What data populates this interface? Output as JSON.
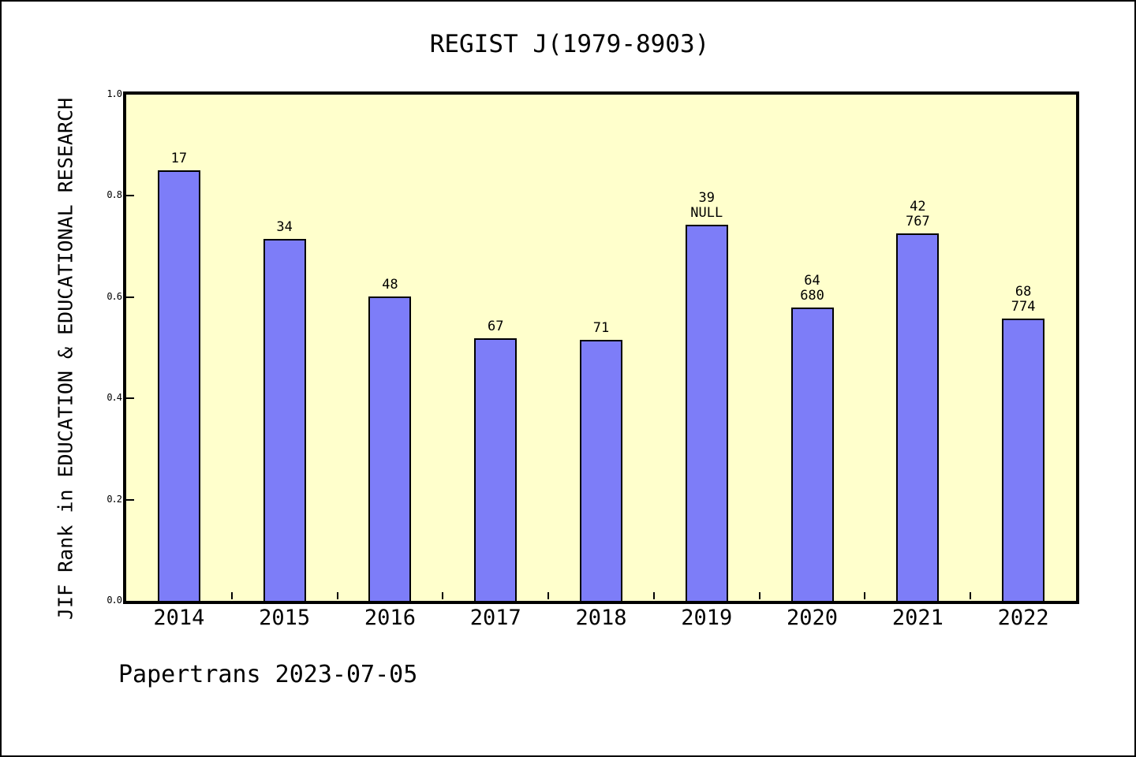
{
  "title": "REGIST J(1979-8903)",
  "footer": "Papertrans 2023-07-05",
  "chart_data": {
    "type": "bar",
    "title": "REGIST J(1979-8903)",
    "xlabel": "",
    "ylabel": "JIF Rank in EDUCATION & EDUCATIONAL RESEARCH",
    "categories": [
      "2014",
      "2015",
      "2016",
      "2017",
      "2018",
      "2019",
      "2020",
      "2021",
      "2022"
    ],
    "values": [
      0.851,
      0.715,
      0.601,
      0.519,
      0.515,
      0.743,
      0.579,
      0.726,
      0.558
    ],
    "bar_labels": [
      [
        "17"
      ],
      [
        "34"
      ],
      [
        "48"
      ],
      [
        "67"
      ],
      [
        "71"
      ],
      [
        "39",
        "NULL"
      ],
      [
        "64",
        "680"
      ],
      [
        "42",
        "767"
      ],
      [
        "68",
        "774"
      ]
    ],
    "ylim": [
      0,
      1
    ],
    "yticks": [
      0.0,
      0.2,
      0.4,
      0.6,
      0.8,
      1.0
    ],
    "ytick_labels": [
      "0.0",
      "0.2",
      "0.4",
      "0.6",
      "0.8",
      "1.0"
    ],
    "grid": false,
    "legend": null,
    "colors": {
      "bar_fill": "#7d7df8",
      "bar_border": "#000000",
      "plot_background": "#ffffcc",
      "page_background": "#ffffff",
      "text": "#000000"
    }
  }
}
